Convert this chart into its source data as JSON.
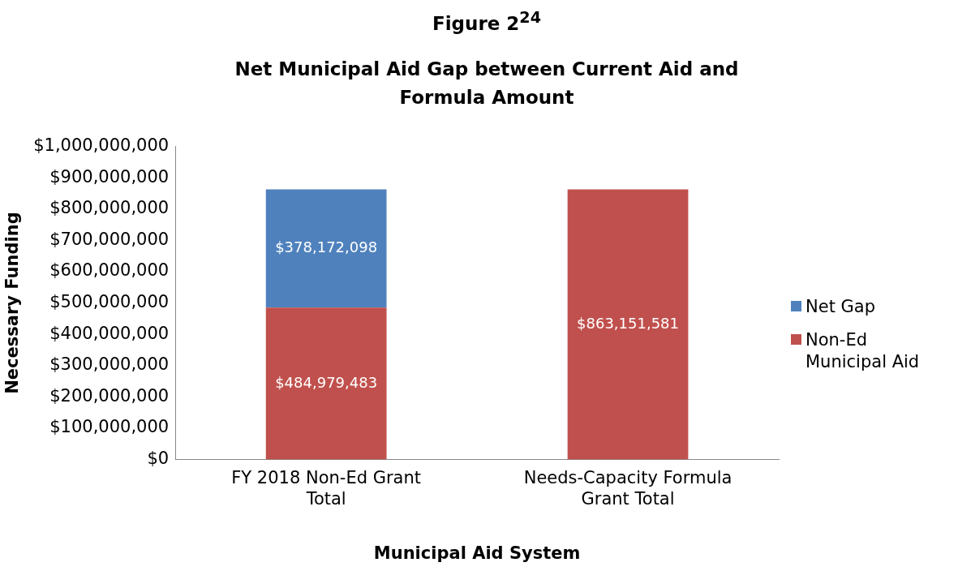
{
  "chart_data": {
    "type": "bar",
    "title": "Figure 2$^{24}$",
    "subtitle": "Net Municipal Aid Gap between Current Aid and Formula Amount",
    "xlabel": "Municipal Aid System",
    "ylabel": "Necessary Funding",
    "categories": [
      "FY 2018 Non-Ed Grant Total",
      "Needs-Capacity Formula Grant Total"
    ],
    "series": [
      {
        "name": "Non-Ed Municipal Aid",
        "color": "#c0504d",
        "values": [
          484979483,
          863151581
        ],
        "value_labels": [
          "$484,979,483",
          "$863,151,581"
        ]
      },
      {
        "name": "Net Gap",
        "color": "#4f81bd",
        "values": [
          378172098,
          null
        ],
        "value_labels": [
          "$378,172,098",
          null
        ]
      }
    ],
    "stacked": true,
    "legend": "right",
    "grid": false,
    "ylim": [
      0,
      1000000000
    ],
    "yticks": [
      {
        "value": 0,
        "label": "$0"
      },
      {
        "value": 100000000,
        "label": "$100,000,000"
      },
      {
        "value": 200000000,
        "label": "$200,000,000"
      },
      {
        "value": 300000000,
        "label": "$300,000,000"
      },
      {
        "value": 400000000,
        "label": "$400,000,000"
      },
      {
        "value": 500000000,
        "label": "$500,000,000"
      },
      {
        "value": 600000000,
        "label": "$600,000,000"
      },
      {
        "value": 700000000,
        "label": "$700,000,000"
      },
      {
        "value": 800000000,
        "label": "$800,000,000"
      },
      {
        "value": 900000000,
        "label": "$900,000,000"
      },
      {
        "value": 1000000000,
        "label": "$1,000,000,000"
      }
    ]
  }
}
